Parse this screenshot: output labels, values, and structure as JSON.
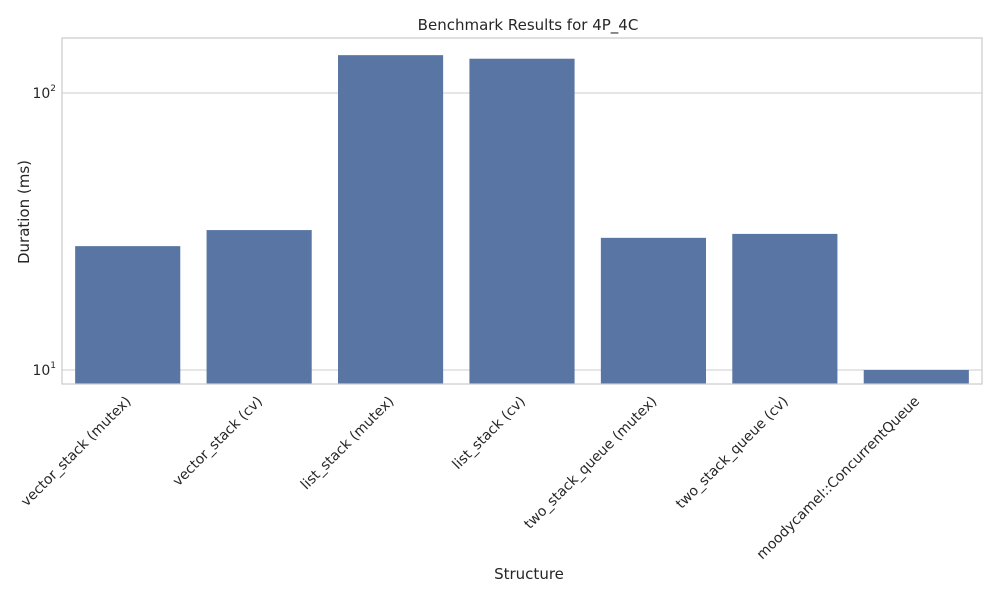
{
  "chart_data": {
    "type": "bar",
    "title": "Benchmark Results for 4P_4C",
    "xlabel": "Structure",
    "ylabel": "Duration (ms)",
    "yscale": "log",
    "ylim": [
      8.9,
      158
    ],
    "yticks": [
      {
        "value": 10,
        "base": "10",
        "exp": "1"
      },
      {
        "value": 100,
        "base": "10",
        "exp": "2"
      }
    ],
    "grid": true,
    "bar_color": "#5875a4",
    "categories": [
      "vector_stack (mutex)",
      "vector_stack (cv)",
      "list_stack (mutex)",
      "list_stack (cv)",
      "two_stack_queue (mutex)",
      "two_stack_queue (cv)",
      "moodycamel::ConcurrentQueue"
    ],
    "values": [
      28,
      32,
      137,
      133,
      30,
      31,
      10
    ]
  }
}
